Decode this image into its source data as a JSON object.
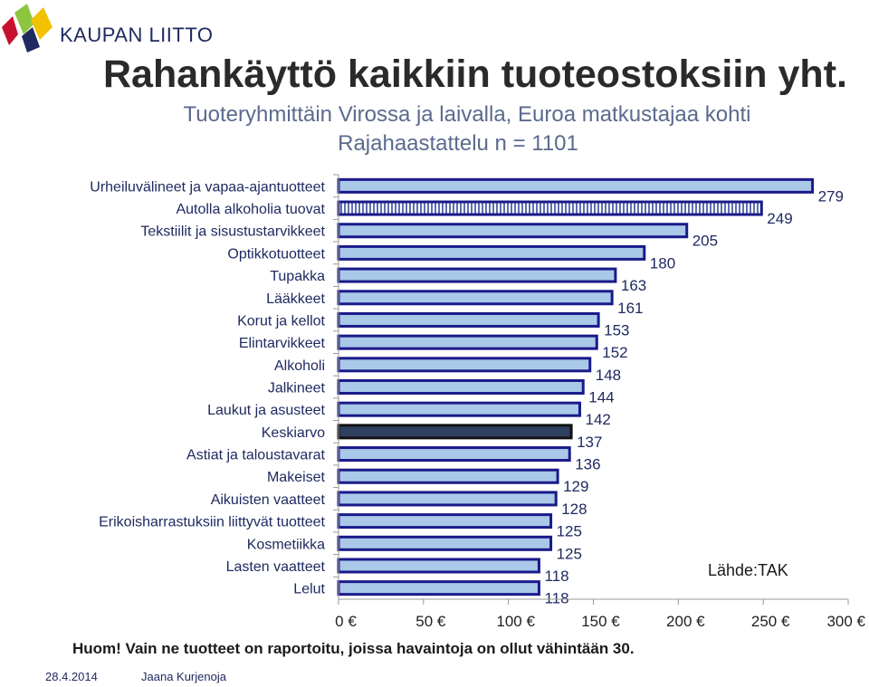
{
  "logo": {
    "text": "KAUPAN LIITTO"
  },
  "header": {
    "title": "Rahankäyttö kaikkiin tuoteostoksiin yht.",
    "subtitle1": "Tuoteryhmittäin Virossa ja laivalla, Euroa matkustajaa kohti",
    "subtitle2": "Rajahaastattelu n = 1101"
  },
  "chart_data": {
    "type": "bar",
    "orientation": "horizontal",
    "categories": [
      "Urheiluvälineet ja vapaa-ajantuotteet",
      "Autolla alkoholia tuovat",
      "Tekstiilit ja sisustustarvikkeet",
      "Optikkotuotteet",
      "Tupakka",
      "Lääkkeet",
      "Korut ja kellot",
      "Elintarvikkeet",
      "Alkoholi",
      "Jalkineet",
      "Laukut ja asusteet",
      "Keskiarvo",
      "Astiat ja taloustavarat",
      "Makeiset",
      "Aikuisten vaatteet",
      "Erikoisharrastuksiin liittyvät tuotteet",
      "Kosmetiikka",
      "Lasten vaatteet",
      "Lelut"
    ],
    "values": [
      279,
      249,
      205,
      180,
      163,
      161,
      153,
      152,
      148,
      144,
      142,
      137,
      136,
      129,
      128,
      125,
      125,
      118,
      118
    ],
    "value_labels": [
      "279",
      "249",
      "205",
      "180",
      "163",
      "161",
      "153",
      "152",
      "148",
      "144",
      "142",
      "137",
      "136",
      "129",
      "128",
      "125",
      "125",
      "118",
      "118"
    ],
    "xlim": [
      0,
      300
    ],
    "xticks": [
      0,
      50,
      100,
      150,
      200,
      250,
      300
    ],
    "xtick_labels": [
      "0 €",
      "50 €",
      "100 €",
      "150 €",
      "200 €",
      "250 €",
      "300 €"
    ],
    "grid": false,
    "legend": "none",
    "colors": {
      "bar_fill": "#aac8e8",
      "bar_border": "#1a1a8a",
      "highlight_fill": "#2f3f60",
      "highlight_border": "#111111"
    },
    "highlight_category": "Keskiarvo",
    "hatched_category": "Autolla alkoholia tuovat"
  },
  "source": "Lähde:TAK",
  "note": "Huom! Vain ne tuotteet on raportoitu, joissa havaintoja on ollut vähintään 30.",
  "footer": {
    "date": "28.4.2014",
    "author": "Jaana Kurjenoja"
  }
}
